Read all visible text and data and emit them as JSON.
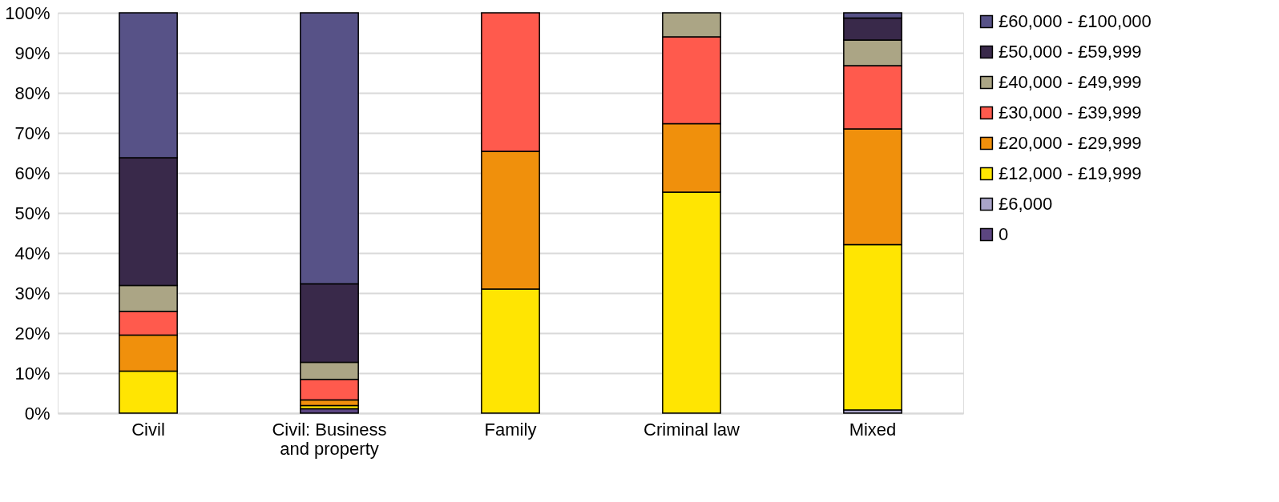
{
  "chart_data": {
    "type": "bar",
    "stacked": true,
    "categories": [
      "Civil",
      "Civil: Business and property",
      "Family",
      "Criminal law",
      "Mixed"
    ],
    "series": [
      {
        "name": "0",
        "color": "#5b4580",
        "values": [
          0,
          1.1,
          0,
          0,
          0
        ]
      },
      {
        "name": "£6,000",
        "color": "#a9a4c9",
        "values": [
          0,
          0,
          0,
          0,
          0.8
        ]
      },
      {
        "name": "£12,000 - £19,999",
        "color": "#ffe502",
        "values": [
          10.5,
          0.8,
          31.0,
          55.2,
          41.3
        ]
      },
      {
        "name": "£20,000 - £29,999",
        "color": "#f0900c",
        "values": [
          9.0,
          1.4,
          34.4,
          17.1,
          28.9
        ]
      },
      {
        "name": "£30,000 - £39,999",
        "color": "#ff5a4d",
        "values": [
          5.9,
          5.1,
          34.6,
          21.7,
          15.8
        ]
      },
      {
        "name": "£40,000 - £49,999",
        "color": "#aba585",
        "values": [
          6.5,
          4.3,
          0,
          6.0,
          6.4
        ]
      },
      {
        "name": "£50,000 - £59,999",
        "color": "#39294a",
        "values": [
          31.9,
          19.6,
          0,
          0,
          5.5
        ]
      },
      {
        "name": "£60,000 - £100,000",
        "color": "#575287",
        "values": [
          36.2,
          67.7,
          0,
          0,
          1.3
        ]
      }
    ],
    "ylim": [
      0,
      100
    ],
    "yticks": [
      {
        "value": 0,
        "label": "0%"
      },
      {
        "value": 10,
        "label": "10%"
      },
      {
        "value": 20,
        "label": "20%"
      },
      {
        "value": 30,
        "label": "30%"
      },
      {
        "value": 40,
        "label": "40%"
      },
      {
        "value": 50,
        "label": "50%"
      },
      {
        "value": 60,
        "label": "60%"
      },
      {
        "value": 70,
        "label": "70%"
      },
      {
        "value": 80,
        "label": "80%"
      },
      {
        "value": 90,
        "label": "90%"
      },
      {
        "value": 100,
        "label": "100%"
      }
    ],
    "grid": "y",
    "legend": "right"
  }
}
